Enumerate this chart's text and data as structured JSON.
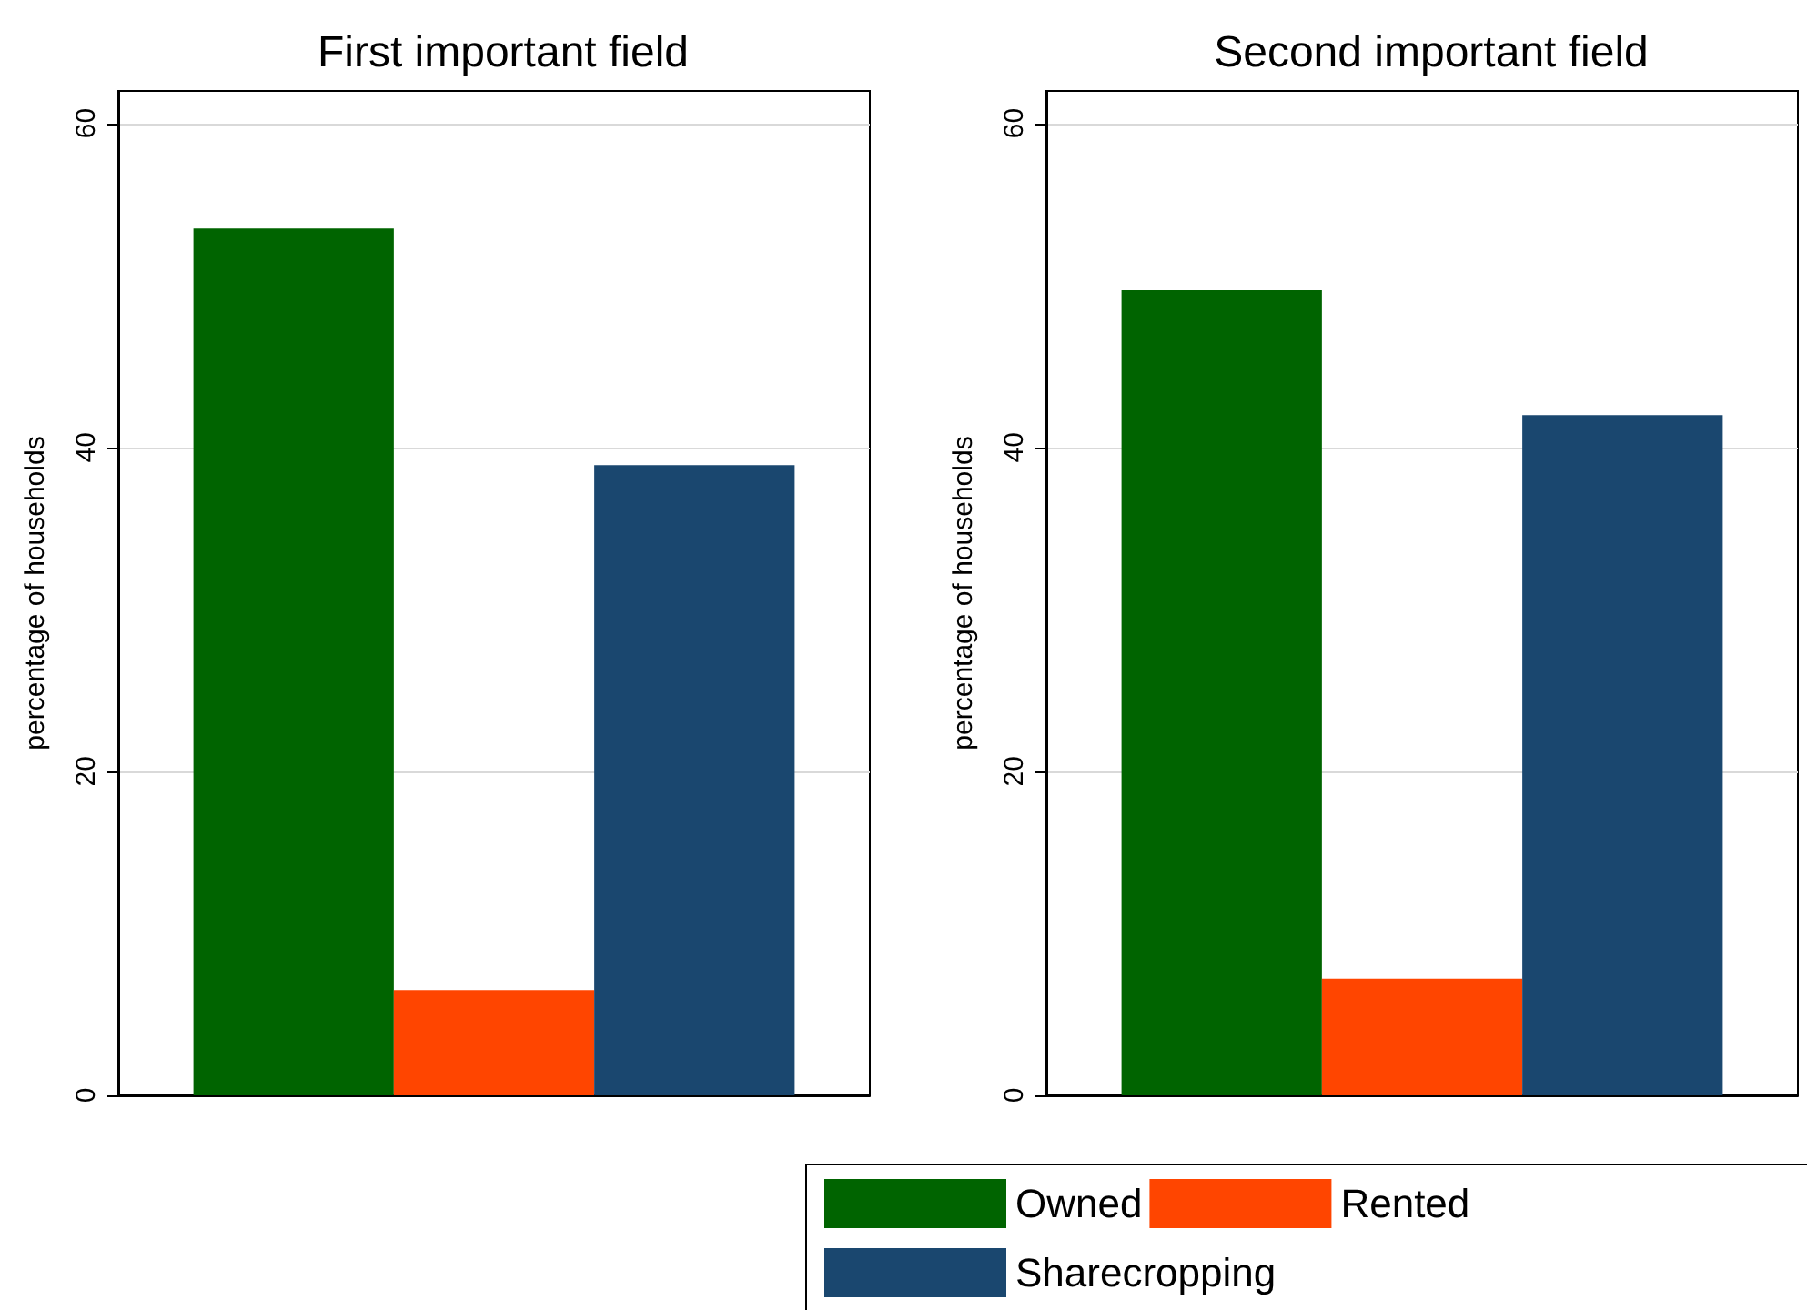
{
  "chart_data": [
    {
      "type": "bar",
      "title": "First important field",
      "ylabel": "percentage of households",
      "categories": [
        null
      ],
      "series": [
        {
          "color": "#006400",
          "values": [
            53.5
          ]
        },
        {
          "color": "#ff4500",
          "values": [
            6.5
          ]
        },
        {
          "color": "#1a476f",
          "values": [
            38.9
          ]
        }
      ],
      "ylim": [
        0,
        62
      ],
      "yticks": [
        0,
        20,
        40,
        60
      ],
      "grid": "y",
      "legend": false
    },
    {
      "type": "bar",
      "title": "Second important field",
      "ylabel": "percentage of households",
      "categories": [
        null
      ],
      "series": [
        {
          "name": "Owned",
          "color": "#006400",
          "values": [
            49.7
          ]
        },
        {
          "name": "Rented",
          "color": "#ff4500",
          "values": [
            7.2
          ]
        },
        {
          "name": "Sharecropping",
          "color": "#1a476f",
          "values": [
            42.0
          ]
        }
      ],
      "ylim": [
        0,
        62
      ],
      "yticks": [
        0,
        20,
        40,
        60
      ],
      "grid": "y",
      "legend": "bottom"
    }
  ]
}
